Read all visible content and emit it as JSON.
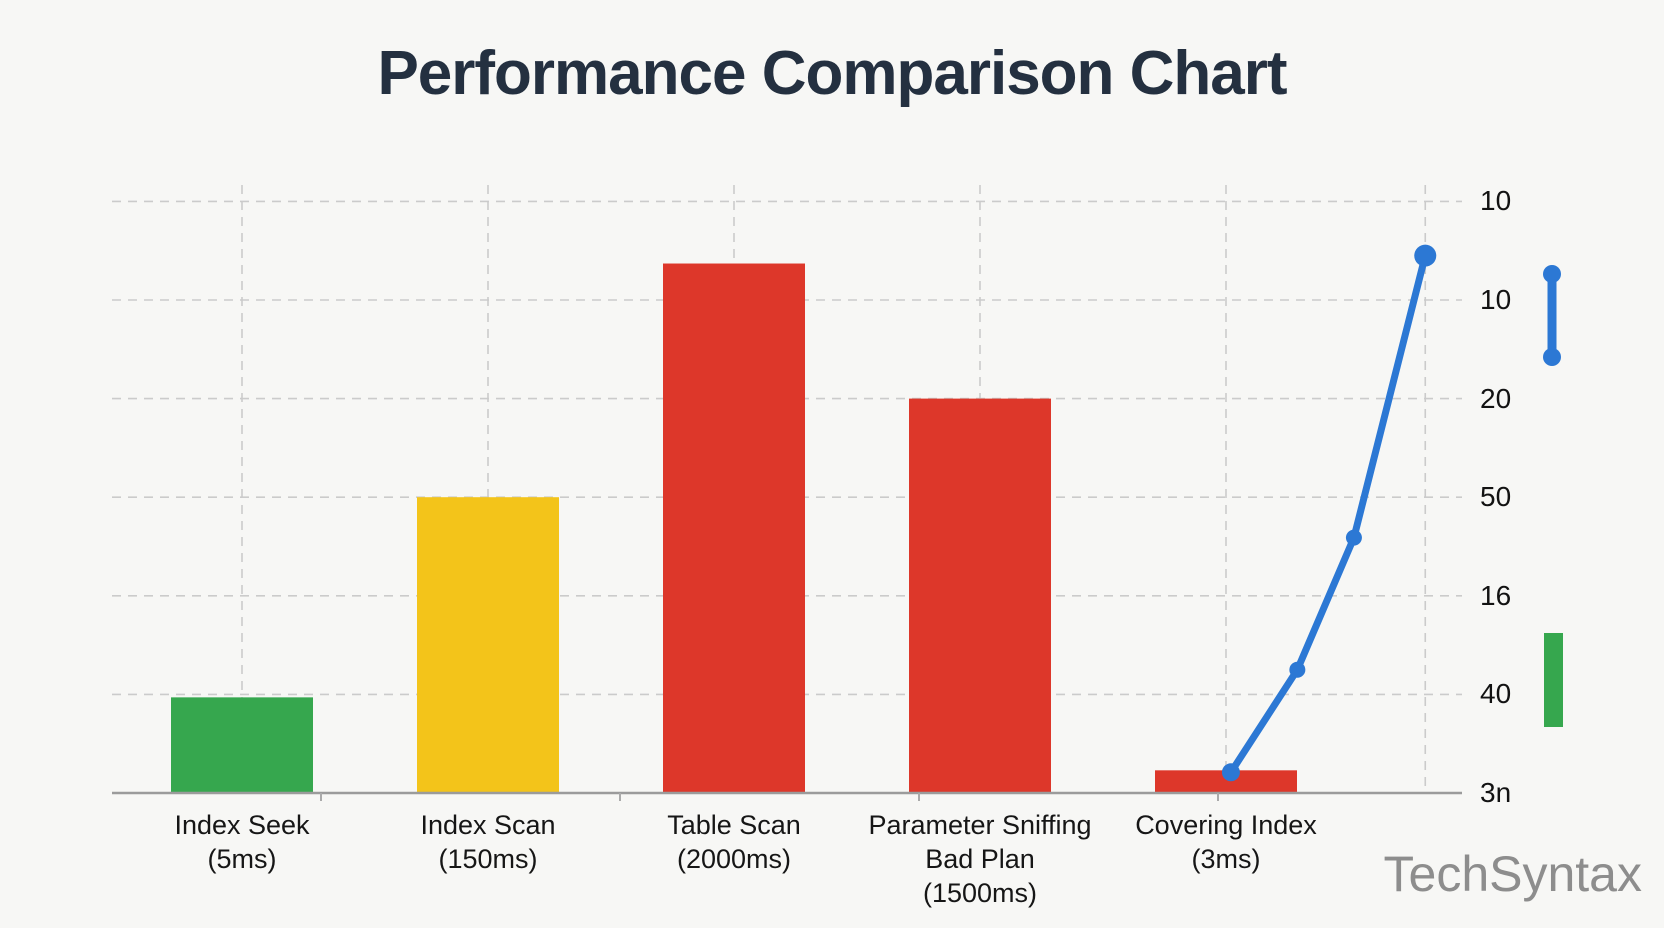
{
  "page": {
    "background": "#f7f7f5"
  },
  "watermark": {
    "text": "TechSyntax",
    "color": "#8d8d8d"
  },
  "chart_data": {
    "type": "bar+line",
    "title": "Performance Comparison Chart",
    "subtitle": "",
    "categories": [
      {
        "label_lines": [
          "Index Seek",
          "(5ms)"
        ],
        "value_ms": 5,
        "color_key": "green",
        "height_units": 0.97
      },
      {
        "label_lines": [
          "Index Scan",
          "(150ms)"
        ],
        "value_ms": 150,
        "color_key": "yellow",
        "height_units": 3.0
      },
      {
        "label_lines": [
          "Table Scan",
          "(2000ms)"
        ],
        "value_ms": 2000,
        "color_key": "red",
        "height_units": 5.37
      },
      {
        "label_lines": [
          "Parameter Sniffing",
          "Bad Plan",
          "(1500ms)"
        ],
        "value_ms": 1500,
        "color_key": "red",
        "height_units": 4.0
      },
      {
        "label_lines": [
          "Covering Index",
          "(3ms)"
        ],
        "value_ms": 3,
        "color_key": "red",
        "height_units": 0.23
      }
    ],
    "line_series": {
      "name": "trend-line",
      "color_key": "blue",
      "points": [
        {
          "x_axis_pos": 4.02,
          "y_units": 0.21,
          "marker_r": 9
        },
        {
          "x_axis_pos": 4.29,
          "y_units": 1.25,
          "marker_r": 8
        },
        {
          "x_axis_pos": 4.52,
          "y_units": 2.59,
          "marker_r": 8
        },
        {
          "x_axis_pos": 4.81,
          "y_units": 5.45,
          "marker_r": 11
        }
      ]
    },
    "y_axis": {
      "side": "right",
      "tick_labels_top_to_bottom": [
        "10",
        "10",
        "20",
        "50",
        "16",
        "40",
        "3n"
      ],
      "grid": "dashed"
    },
    "x_axis": {
      "labels_under_bars": true
    },
    "colors": {
      "green": "#36a74e",
      "yellow": "#f3c41a",
      "red": "#dd372a",
      "blue": "#2c78d4",
      "grid": "#cbcbcb",
      "axis": "#9b9b9b",
      "tick": "#aaaaaa"
    },
    "legend_marks": {
      "line_mark": "blue vertical segment with end dots",
      "bar_mark": "green rectangle swatch"
    },
    "ylim_units": [
      0,
      6
    ],
    "grid_on": true
  }
}
